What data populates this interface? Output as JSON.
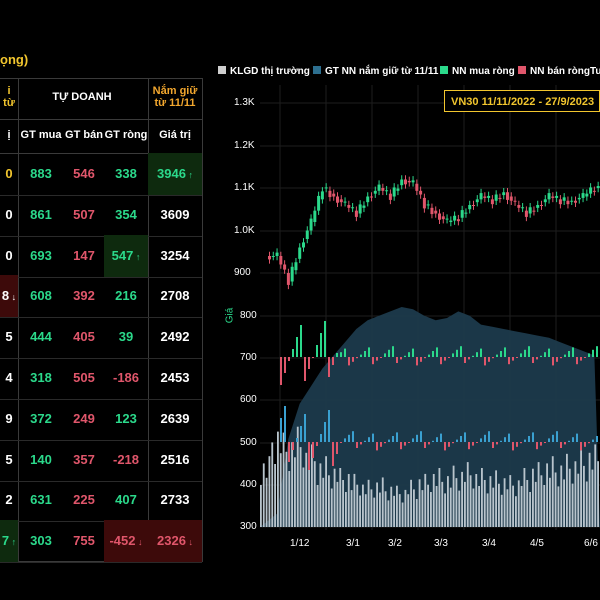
{
  "page": {
    "title_fragment": "ọng)"
  },
  "table": {
    "header_top": {
      "left_fragment": "i\ntừ",
      "tu_doanh": "TỰ DOANH",
      "held_since": "Nắm giữ\ntừ 11/11"
    },
    "header_cols": {
      "first_fragment": "ị",
      "gt_mua": "GT mua",
      "gt_ban": "GT bán",
      "gt_rong": "GT ròng",
      "gia_tri": "Giá trị"
    },
    "rows": [
      {
        "first": "0",
        "mua": "883",
        "ban": "546",
        "rong": "338",
        "giatri": "3946"
      },
      {
        "first": "0",
        "mua": "861",
        "ban": "507",
        "rong": "354",
        "giatri": "3609"
      },
      {
        "first": "0",
        "mua": "693",
        "ban": "147",
        "rong": "547",
        "giatri": "3254"
      },
      {
        "first": "8",
        "mua": "608",
        "ban": "392",
        "rong": "216",
        "giatri": "2708"
      },
      {
        "first": "5",
        "mua": "444",
        "ban": "405",
        "rong": "39",
        "giatri": "2492"
      },
      {
        "first": "4",
        "mua": "318",
        "ban": "505",
        "rong": "-186",
        "giatri": "2453"
      },
      {
        "first": "9",
        "mua": "372",
        "ban": "249",
        "rong": "123",
        "giatri": "2639"
      },
      {
        "first": "5",
        "mua": "140",
        "ban": "357",
        "rong": "-218",
        "giatri": "2516"
      },
      {
        "first": "2",
        "mua": "631",
        "ban": "225",
        "rong": "407",
        "giatri": "2733"
      },
      {
        "first": "7",
        "mua": "303",
        "ban": "755",
        "rong": "-452",
        "giatri": "2326"
      }
    ]
  },
  "legend": {
    "klgd": "KLGD thị trường",
    "gt_nn": "GT NN nắm giữ từ 11/11",
    "nn_mua": "NN mua ròng",
    "nn_ban": "NN bán ròng",
    "tu_fragment": "Tu"
  },
  "colors": {
    "gold": "#f2c62e",
    "green": "#2bd98b",
    "red": "#e0566b",
    "area": "#1c3a4c",
    "grey": "#cfcfcf"
  },
  "chart_badge": "VN30 11/11/2022 - 27/9/2023",
  "chart_data": {
    "type": "line",
    "title": "VN30 11/11/2022 - 27/9/2023",
    "ylabel": "Giá",
    "y_ticks_upper": [
      "1.3K",
      "1.2K",
      "1.1K",
      "1.0K",
      "900"
    ],
    "y_ticks_lower": [
      "800",
      "700",
      "600",
      "500",
      "400",
      "300"
    ],
    "x_ticks": [
      "1/12",
      "3/1",
      "3/2",
      "3/3",
      "3/4",
      "4/5",
      "6/6"
    ],
    "vn30_close": [
      940,
      880,
      960,
      1020,
      1100,
      1080,
      1060,
      1040,
      1080,
      1100,
      1080,
      1120,
      1110,
      1060,
      1040,
      1020,
      1030,
      1060,
      1080,
      1070,
      1090,
      1060,
      1040,
      1060,
      1080,
      1070,
      1070,
      1080,
      1100,
      1090
    ],
    "gt_nn_held": [
      10,
      30,
      200,
      280,
      320,
      360,
      390,
      420,
      450,
      470,
      480,
      490,
      500,
      495,
      480,
      470,
      475,
      490,
      480,
      460,
      455,
      450,
      445,
      440,
      435,
      430,
      420,
      410,
      400,
      390
    ],
    "klgd": [
      60,
      90,
      80,
      85,
      70,
      60,
      55,
      50,
      45,
      40,
      42,
      38,
      35,
      40,
      45,
      50,
      48,
      52,
      55,
      50,
      48,
      46,
      44,
      50,
      55,
      60,
      58,
      62,
      65,
      70
    ]
  }
}
